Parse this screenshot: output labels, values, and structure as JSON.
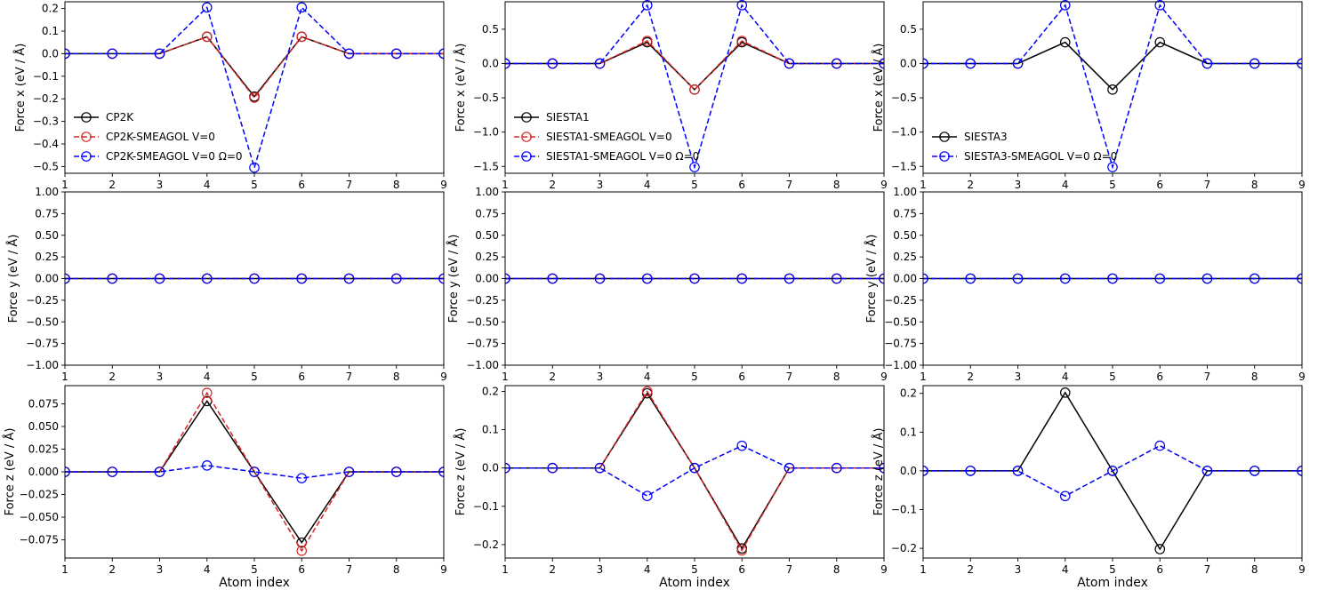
{
  "figure": {
    "colors": {
      "black": "#000000",
      "red": "#d62728",
      "blue": "#0000ff"
    }
  },
  "chart_data": [
    {
      "type": "line",
      "row": 0,
      "col": 0,
      "x": [
        1,
        2,
        3,
        4,
        5,
        6,
        7,
        8,
        9
      ],
      "xlim": [
        1,
        9
      ],
      "ylim": [
        -0.53,
        0.23
      ],
      "yticks": [
        -0.5,
        -0.4,
        -0.3,
        -0.2,
        -0.1,
        0.0,
        0.1,
        0.2
      ],
      "ytick_labels": [
        "−0.5",
        "−0.4",
        "−0.3",
        "−0.2",
        "−0.1",
        "0.0",
        "0.1",
        "0.2"
      ],
      "ylabel": "Force x (eV / Å)",
      "xlabel": "",
      "legend": "lower-left",
      "series": [
        {
          "name": "CP2K",
          "color": "#000000",
          "dash": "solid",
          "values": [
            0,
            0,
            0,
            0.075,
            -0.19,
            0.075,
            0,
            0,
            0
          ]
        },
        {
          "name": "CP2K-SMEAGOL V=0",
          "color": "#d62728",
          "dash": "dashed",
          "values": [
            0,
            0,
            0,
            0.075,
            -0.195,
            0.075,
            0,
            0,
            0
          ]
        },
        {
          "name": "CP2K-SMEAGOL V=0 Ω=0",
          "color": "#0000ff",
          "dash": "dashed",
          "values": [
            0,
            0,
            0,
            0.205,
            -0.505,
            0.205,
            0,
            0,
            0
          ]
        }
      ]
    },
    {
      "type": "line",
      "row": 0,
      "col": 1,
      "x": [
        1,
        2,
        3,
        4,
        5,
        6,
        7,
        8,
        9
      ],
      "xlim": [
        1,
        9
      ],
      "ylim": [
        -1.6,
        0.9
      ],
      "yticks": [
        -1.5,
        -1.0,
        -0.5,
        0.0,
        0.5
      ],
      "ytick_labels": [
        "−1.5",
        "−1.0",
        "−0.5",
        "0.0",
        "0.5"
      ],
      "ylabel": "Force x (eV / Å)",
      "xlabel": "",
      "legend": "lower-left",
      "series": [
        {
          "name": "SIESTA1",
          "color": "#000000",
          "dash": "solid",
          "values": [
            0,
            0,
            0,
            0.31,
            -0.38,
            0.31,
            0,
            0,
            0
          ]
        },
        {
          "name": "SIESTA1-SMEAGOL V=0",
          "color": "#d62728",
          "dash": "dashed",
          "values": [
            0,
            0,
            0,
            0.33,
            -0.38,
            0.33,
            0,
            0,
            0
          ]
        },
        {
          "name": "SIESTA1-SMEAGOL V=0 Ω=0",
          "color": "#0000ff",
          "dash": "dashed",
          "values": [
            0,
            0,
            0,
            0.85,
            -1.51,
            0.85,
            0,
            0,
            0
          ]
        }
      ]
    },
    {
      "type": "line",
      "row": 0,
      "col": 2,
      "x": [
        1,
        2,
        3,
        4,
        5,
        6,
        7,
        8,
        9
      ],
      "xlim": [
        1,
        9
      ],
      "ylim": [
        -1.6,
        0.9
      ],
      "yticks": [
        -1.5,
        -1.0,
        -0.5,
        0.0,
        0.5
      ],
      "ytick_labels": [
        "−1.5",
        "−1.0",
        "−0.5",
        "0.0",
        "0.5"
      ],
      "ylabel": "Force x (eV / Å)",
      "xlabel": "",
      "legend": "lower-left",
      "series": [
        {
          "name": "SIESTA3",
          "color": "#000000",
          "dash": "solid",
          "values": [
            0,
            0,
            0,
            0.31,
            -0.38,
            0.31,
            0,
            0,
            0
          ]
        },
        {
          "name": "SIESTA3-SMEAGOL V=0 Ω=0",
          "color": "#0000ff",
          "dash": "dashed",
          "values": [
            0,
            0,
            0,
            0.85,
            -1.51,
            0.85,
            0,
            0,
            0
          ]
        }
      ]
    },
    {
      "type": "line",
      "row": 1,
      "col": 0,
      "x": [
        1,
        2,
        3,
        4,
        5,
        6,
        7,
        8,
        9
      ],
      "xlim": [
        1,
        9
      ],
      "ylim": [
        -1.0,
        1.0
      ],
      "yticks": [
        -1.0,
        -0.75,
        -0.5,
        -0.25,
        0.0,
        0.25,
        0.5,
        0.75,
        1.0
      ],
      "ytick_labels": [
        "−1.00",
        "−0.75",
        "−0.50",
        "−0.25",
        "0.00",
        "0.25",
        "0.50",
        "0.75",
        "1.00"
      ],
      "ylabel": "Force y (eV / Å)",
      "xlabel": "",
      "legend": "none",
      "series": [
        {
          "color": "#000000",
          "dash": "solid",
          "values": [
            0,
            0,
            0,
            0,
            0,
            0,
            0,
            0,
            0
          ]
        },
        {
          "color": "#d62728",
          "dash": "dashed",
          "values": [
            0,
            0,
            0,
            0,
            0,
            0,
            0,
            0,
            0
          ]
        },
        {
          "color": "#0000ff",
          "dash": "dashed",
          "values": [
            0,
            0,
            0,
            0,
            0,
            0,
            0,
            0,
            0
          ]
        }
      ]
    },
    {
      "type": "line",
      "row": 1,
      "col": 1,
      "x": [
        1,
        2,
        3,
        4,
        5,
        6,
        7,
        8,
        9
      ],
      "xlim": [
        1,
        9
      ],
      "ylim": [
        -1.0,
        1.0
      ],
      "yticks": [
        -1.0,
        -0.75,
        -0.5,
        -0.25,
        0.0,
        0.25,
        0.5,
        0.75,
        1.0
      ],
      "ytick_labels": [
        "−1.00",
        "−0.75",
        "−0.50",
        "−0.25",
        "0.00",
        "0.25",
        "0.50",
        "0.75",
        "1.00"
      ],
      "ylabel": "Force y (eV / Å)",
      "xlabel": "",
      "legend": "none",
      "series": [
        {
          "color": "#000000",
          "dash": "solid",
          "values": [
            0,
            0,
            0,
            0,
            0,
            0,
            0,
            0,
            0
          ]
        },
        {
          "color": "#d62728",
          "dash": "dashed",
          "values": [
            0,
            0,
            0,
            0,
            0,
            0,
            0,
            0,
            0
          ]
        },
        {
          "color": "#0000ff",
          "dash": "dashed",
          "values": [
            0,
            0,
            0,
            0,
            0,
            0,
            0,
            0,
            0
          ]
        }
      ]
    },
    {
      "type": "line",
      "row": 1,
      "col": 2,
      "x": [
        1,
        2,
        3,
        4,
        5,
        6,
        7,
        8,
        9
      ],
      "xlim": [
        1,
        9
      ],
      "ylim": [
        -1.0,
        1.0
      ],
      "yticks": [
        -1.0,
        -0.75,
        -0.5,
        -0.25,
        0.0,
        0.25,
        0.5,
        0.75,
        1.0
      ],
      "ytick_labels": [
        "−1.00",
        "−0.75",
        "−0.50",
        "−0.25",
        "0.00",
        "0.25",
        "0.50",
        "0.75",
        "1.00"
      ],
      "ylabel": "Force y (eV / Å)",
      "xlabel": "",
      "legend": "none",
      "series": [
        {
          "color": "#000000",
          "dash": "solid",
          "values": [
            0,
            0,
            0,
            0,
            0,
            0,
            0,
            0,
            0
          ]
        },
        {
          "color": "#0000ff",
          "dash": "dashed",
          "values": [
            0,
            0,
            0,
            0,
            0,
            0,
            0,
            0,
            0
          ]
        }
      ]
    },
    {
      "type": "line",
      "row": 2,
      "col": 0,
      "x": [
        1,
        2,
        3,
        4,
        5,
        6,
        7,
        8,
        9
      ],
      "xlim": [
        1,
        9
      ],
      "ylim": [
        -0.095,
        0.095
      ],
      "yticks": [
        -0.075,
        -0.05,
        -0.025,
        0.0,
        0.025,
        0.05,
        0.075
      ],
      "ytick_labels": [
        "−0.075",
        "−0.050",
        "−0.025",
        "0.000",
        "0.025",
        "0.050",
        "0.075"
      ],
      "ylabel": "Force z (eV / Å)",
      "xlabel": "Atom index",
      "legend": "none",
      "series": [
        {
          "color": "#000000",
          "dash": "solid",
          "values": [
            0,
            0,
            0,
            0.078,
            0,
            -0.078,
            0,
            0,
            0
          ]
        },
        {
          "color": "#d62728",
          "dash": "dashed",
          "values": [
            0,
            0,
            0,
            0.087,
            0,
            -0.087,
            0,
            0,
            0
          ]
        },
        {
          "color": "#0000ff",
          "dash": "dashed",
          "values": [
            0,
            0,
            0,
            0.007,
            0,
            -0.007,
            0,
            0,
            0
          ]
        }
      ]
    },
    {
      "type": "line",
      "row": 2,
      "col": 1,
      "x": [
        1,
        2,
        3,
        4,
        5,
        6,
        7,
        8,
        9
      ],
      "xlim": [
        1,
        9
      ],
      "ylim": [
        -0.235,
        0.215
      ],
      "yticks": [
        -0.2,
        -0.1,
        0.0,
        0.1,
        0.2
      ],
      "ytick_labels": [
        "−0.2",
        "−0.1",
        "0.0",
        "0.1",
        "0.2"
      ],
      "ylabel": "Force z (eV / Å)",
      "xlabel": "Atom index",
      "legend": "none",
      "series": [
        {
          "color": "#000000",
          "dash": "solid",
          "values": [
            0,
            0,
            0,
            0.195,
            0,
            -0.21,
            0,
            0,
            0
          ]
        },
        {
          "color": "#d62728",
          "dash": "dashed",
          "values": [
            0,
            0,
            0,
            0.2,
            0,
            -0.215,
            0,
            0,
            0
          ]
        },
        {
          "color": "#0000ff",
          "dash": "dashed",
          "values": [
            0,
            0,
            0,
            -0.073,
            0,
            0.058,
            0,
            0,
            0
          ]
        }
      ]
    },
    {
      "type": "line",
      "row": 2,
      "col": 2,
      "x": [
        1,
        2,
        3,
        4,
        5,
        6,
        7,
        8,
        9
      ],
      "xlim": [
        1,
        9
      ],
      "ylim": [
        -0.225,
        0.22
      ],
      "yticks": [
        -0.2,
        -0.1,
        0.0,
        0.1,
        0.2
      ],
      "ytick_labels": [
        "−0.2",
        "−0.1",
        "0.0",
        "0.1",
        "0.2"
      ],
      "ylabel": "Force z (eV / Å)",
      "xlabel": "Atom index",
      "legend": "none",
      "series": [
        {
          "color": "#000000",
          "dash": "solid",
          "values": [
            0,
            0,
            0,
            0.202,
            0,
            -0.202,
            0,
            0,
            0
          ]
        },
        {
          "color": "#0000ff",
          "dash": "dashed",
          "values": [
            0,
            0,
            0,
            -0.065,
            0,
            0.065,
            0,
            0,
            0
          ]
        }
      ]
    }
  ]
}
